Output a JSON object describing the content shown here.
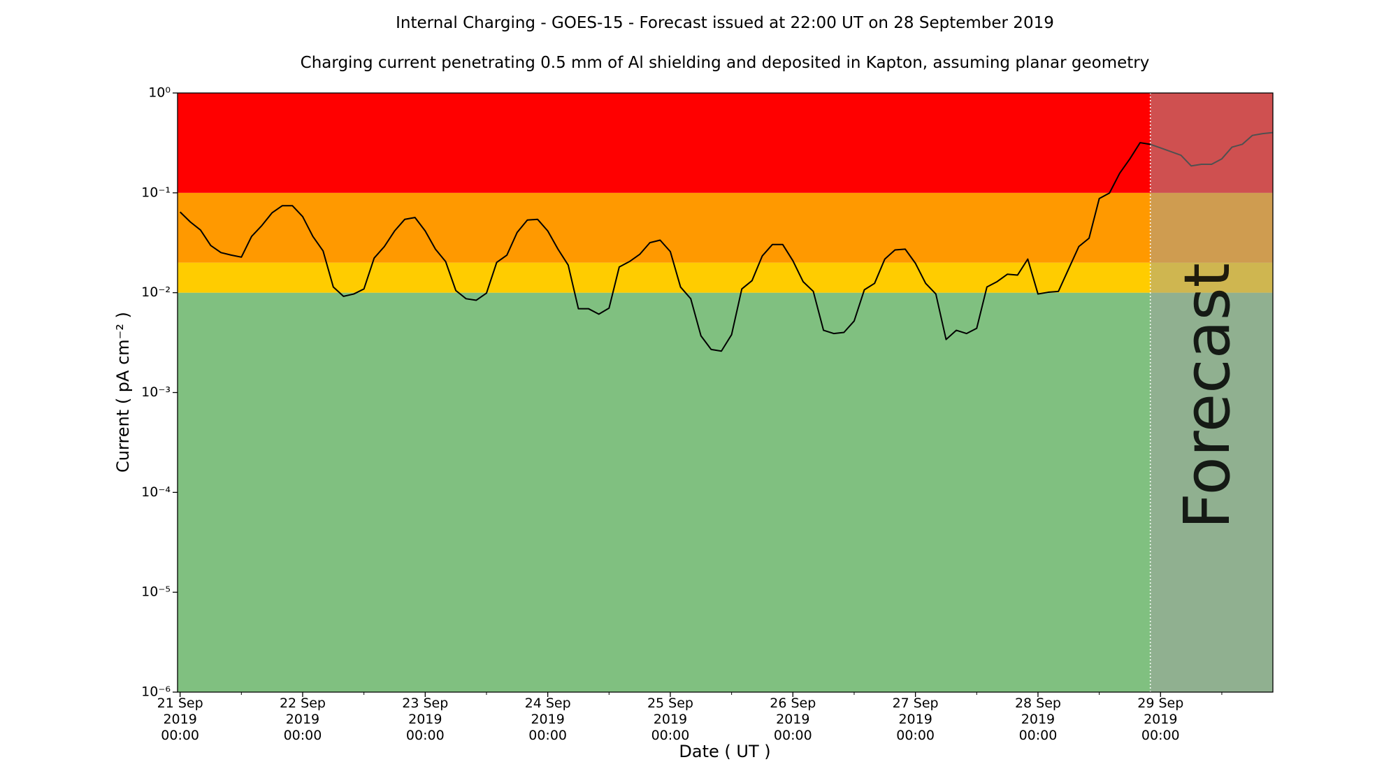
{
  "chart_data": {
    "type": "line",
    "title": "Internal Charging - GOES-15 - Forecast issued at 22:00 UT on 28 September 2019",
    "subtitle": "Charging current penetrating 0.5 mm of Al shielding and deposited in Kapton, assuming planar geometry",
    "xlabel": "Date ( UT )",
    "ylabel": "Current ( pA cm⁻² )",
    "log_y": true,
    "color": "#000000",
    "bands": [
      {
        "from": 1e-06,
        "to": 0.01,
        "color": "#80c080"
      },
      {
        "from": 0.01,
        "to": 0.02,
        "color": "#ffcc00"
      },
      {
        "from": 0.02,
        "to": 0.1,
        "color": "#ff9900"
      },
      {
        "from": 0.1,
        "to": 1,
        "color": "#ff0000"
      }
    ],
    "forecast_start": "2019-09-28 22:00",
    "forecast_label": "Forecast",
    "forecast_shade": "#a0a0a0",
    "xlim": [
      "2019-09-20 23:30",
      "2019-09-29 22:00"
    ],
    "ylim": [
      1e-06,
      1
    ],
    "xticks": [
      {
        "value": "2019-09-21 00:00",
        "label": "21 Sep\n2019\n00:00"
      },
      {
        "value": "2019-09-22 00:00",
        "label": "22 Sep\n2019\n00:00"
      },
      {
        "value": "2019-09-23 00:00",
        "label": "23 Sep\n2019\n00:00"
      },
      {
        "value": "2019-09-24 00:00",
        "label": "24 Sep\n2019\n00:00"
      },
      {
        "value": "2019-09-25 00:00",
        "label": "25 Sep\n2019\n00:00"
      },
      {
        "value": "2019-09-26 00:00",
        "label": "26 Sep\n2019\n00:00"
      },
      {
        "value": "2019-09-27 00:00",
        "label": "27 Sep\n2019\n00:00"
      },
      {
        "value": "2019-09-28 00:00",
        "label": "28 Sep\n2019\n00:00"
      },
      {
        "value": "2019-09-29 00:00",
        "label": "29 Sep\n2019\n00:00"
      }
    ],
    "xminorticks": [
      "2019-09-21 12:00",
      "2019-09-22 12:00",
      "2019-09-23 12:00",
      "2019-09-24 12:00",
      "2019-09-25 12:00",
      "2019-09-26 12:00",
      "2019-09-27 12:00",
      "2019-09-28 12:00",
      "2019-09-29 12:00"
    ],
    "yticks": [
      {
        "value": 1e-06,
        "label": "10⁻⁶"
      },
      {
        "value": 1e-05,
        "label": "10⁻⁵"
      },
      {
        "value": 0.0001,
        "label": "10⁻⁴"
      },
      {
        "value": 0.001,
        "label": "10⁻³"
      },
      {
        "value": 0.01,
        "label": "10⁻²"
      },
      {
        "value": 0.1,
        "label": "10⁻¹"
      },
      {
        "value": 1,
        "label": "10⁰"
      }
    ],
    "x": [
      "2019-09-21 00:00",
      "2019-09-21 02:00",
      "2019-09-21 04:00",
      "2019-09-21 06:00",
      "2019-09-21 08:00",
      "2019-09-21 10:00",
      "2019-09-21 12:00",
      "2019-09-21 14:00",
      "2019-09-21 16:00",
      "2019-09-21 18:00",
      "2019-09-21 20:00",
      "2019-09-21 22:00",
      "2019-09-22 00:00",
      "2019-09-22 02:00",
      "2019-09-22 04:00",
      "2019-09-22 06:00",
      "2019-09-22 08:00",
      "2019-09-22 10:00",
      "2019-09-22 12:00",
      "2019-09-22 14:00",
      "2019-09-22 16:00",
      "2019-09-22 18:00",
      "2019-09-22 20:00",
      "2019-09-22 22:00",
      "2019-09-23 00:00",
      "2019-09-23 02:00",
      "2019-09-23 04:00",
      "2019-09-23 06:00",
      "2019-09-23 08:00",
      "2019-09-23 10:00",
      "2019-09-23 12:00",
      "2019-09-23 14:00",
      "2019-09-23 16:00",
      "2019-09-23 18:00",
      "2019-09-23 20:00",
      "2019-09-23 22:00",
      "2019-09-24 00:00",
      "2019-09-24 02:00",
      "2019-09-24 04:00",
      "2019-09-24 06:00",
      "2019-09-24 08:00",
      "2019-09-24 10:00",
      "2019-09-24 12:00",
      "2019-09-24 14:00",
      "2019-09-24 16:00",
      "2019-09-24 18:00",
      "2019-09-24 20:00",
      "2019-09-24 22:00",
      "2019-09-25 00:00",
      "2019-09-25 02:00",
      "2019-09-25 04:00",
      "2019-09-25 06:00",
      "2019-09-25 08:00",
      "2019-09-25 10:00",
      "2019-09-25 12:00",
      "2019-09-25 14:00",
      "2019-09-25 16:00",
      "2019-09-25 18:00",
      "2019-09-25 20:00",
      "2019-09-25 22:00",
      "2019-09-26 00:00",
      "2019-09-26 02:00",
      "2019-09-26 04:00",
      "2019-09-26 06:00",
      "2019-09-26 08:00",
      "2019-09-26 10:00",
      "2019-09-26 12:00",
      "2019-09-26 14:00",
      "2019-09-26 16:00",
      "2019-09-26 18:00",
      "2019-09-26 20:00",
      "2019-09-26 22:00",
      "2019-09-27 00:00",
      "2019-09-27 02:00",
      "2019-09-27 04:00",
      "2019-09-27 06:00",
      "2019-09-27 08:00",
      "2019-09-27 10:00",
      "2019-09-27 12:00",
      "2019-09-27 14:00",
      "2019-09-27 16:00",
      "2019-09-27 18:00",
      "2019-09-27 20:00",
      "2019-09-27 22:00",
      "2019-09-28 00:00",
      "2019-09-28 02:00",
      "2019-09-28 04:00",
      "2019-09-28 06:00",
      "2019-09-28 08:00",
      "2019-09-28 10:00",
      "2019-09-28 12:00",
      "2019-09-28 14:00",
      "2019-09-28 16:00",
      "2019-09-28 18:00",
      "2019-09-28 20:00",
      "2019-09-28 22:00",
      "2019-09-29 00:00",
      "2019-09-29 02:00",
      "2019-09-29 04:00",
      "2019-09-29 06:00",
      "2019-09-29 08:00",
      "2019-09-29 10:00",
      "2019-09-29 12:00",
      "2019-09-29 14:00",
      "2019-09-29 16:00",
      "2019-09-29 18:00",
      "2019-09-29 20:00",
      "2019-09-29 22:00"
    ],
    "values": [
      0.0643,
      0.0511,
      0.0424,
      0.0297,
      0.0252,
      0.0238,
      0.0227,
      0.0366,
      0.047,
      0.063,
      0.0743,
      0.0743,
      0.0578,
      0.0366,
      0.0262,
      0.0114,
      0.0092,
      0.0097,
      0.0109,
      0.0222,
      0.029,
      0.0415,
      0.0543,
      0.0566,
      0.0415,
      0.0273,
      0.0205,
      0.0105,
      0.0087,
      0.0084,
      0.0099,
      0.0201,
      0.0238,
      0.0401,
      0.0534,
      0.0543,
      0.0415,
      0.0273,
      0.0189,
      0.0069,
      0.0069,
      0.0061,
      0.007,
      0.0181,
      0.0205,
      0.0242,
      0.0317,
      0.0336,
      0.0258,
      0.0114,
      0.0087,
      0.0037,
      0.0027,
      0.0026,
      0.0038,
      0.0109,
      0.0132,
      0.0233,
      0.0304,
      0.0304,
      0.0209,
      0.0129,
      0.0103,
      0.0042,
      0.0039,
      0.004,
      0.0052,
      0.0107,
      0.0124,
      0.0217,
      0.0268,
      0.0273,
      0.0197,
      0.0124,
      0.0097,
      0.0034,
      0.0042,
      0.0039,
      0.0044,
      0.0114,
      0.0129,
      0.0153,
      0.015,
      0.0217,
      0.0097,
      0.0101,
      0.0103,
      0.0173,
      0.029,
      0.0351,
      0.0877,
      0.0995,
      0.157,
      0.219,
      0.318,
      0.306,
      0.282,
      0.259,
      0.238,
      0.186,
      0.193,
      0.193,
      0.219,
      0.287,
      0.306,
      0.376,
      0.392,
      0.401
    ]
  }
}
